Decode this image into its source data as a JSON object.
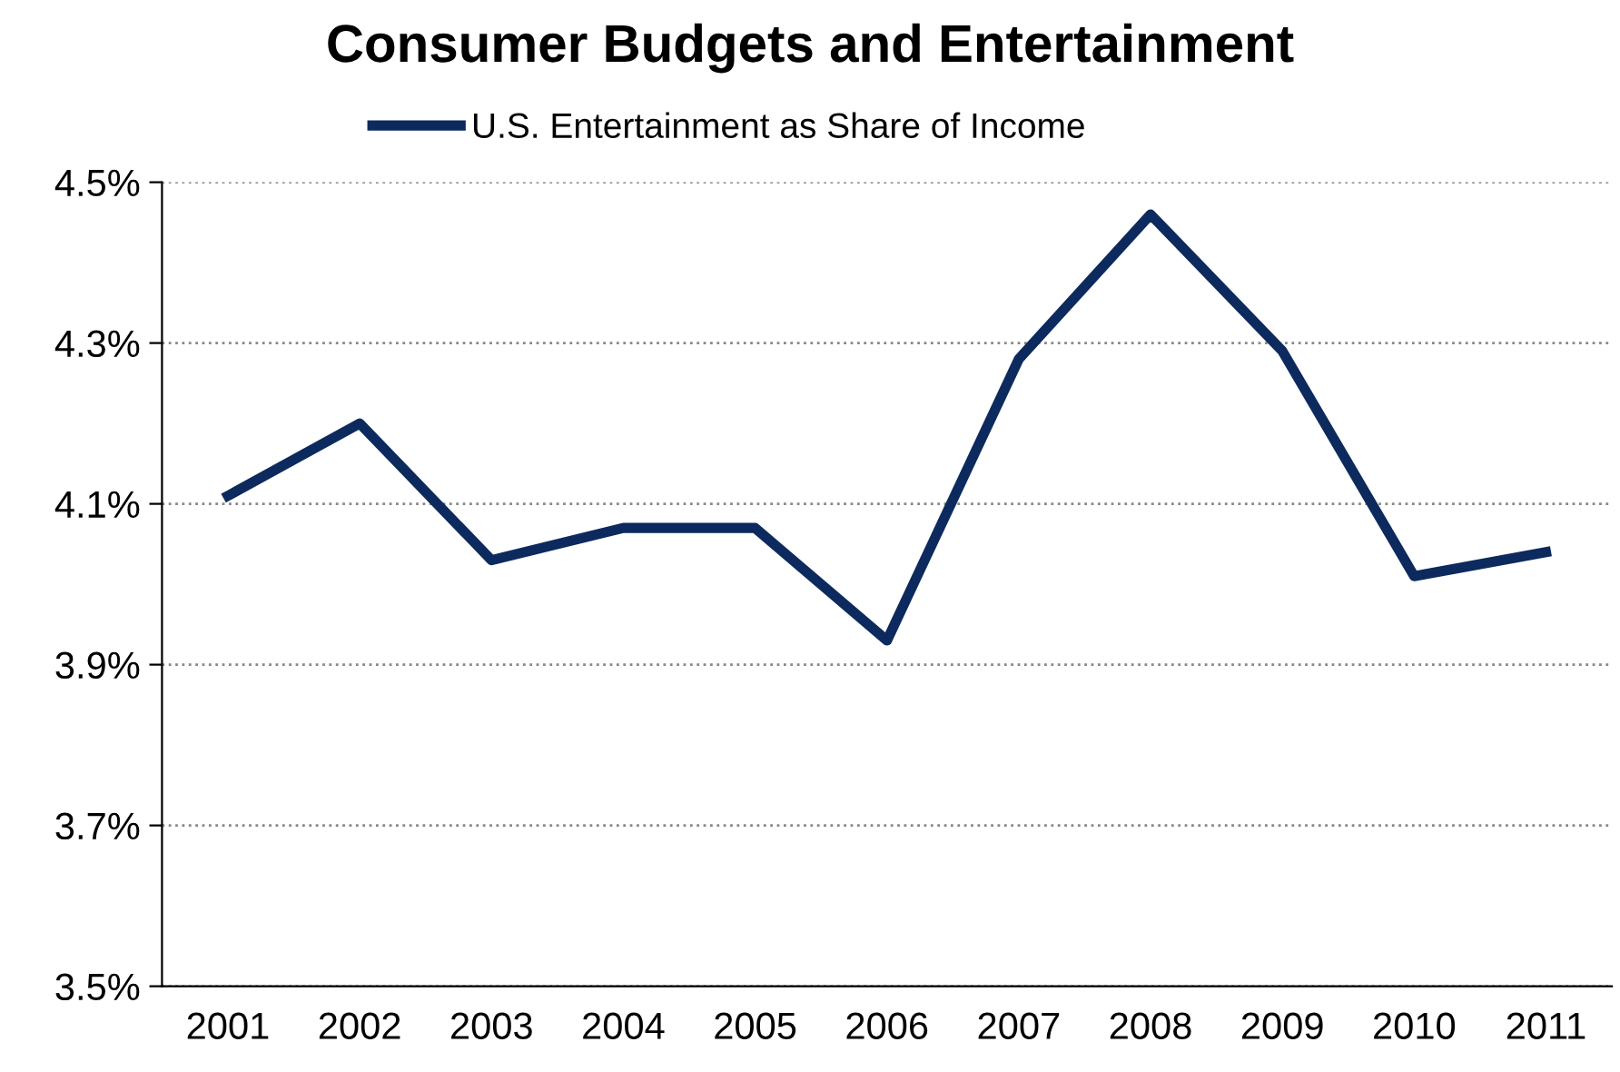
{
  "chart_data": {
    "type": "line",
    "title": "Consumer Budgets and Entertainment",
    "categories": [
      "2001",
      "2002",
      "2003",
      "2004",
      "2005",
      "2006",
      "2007",
      "2008",
      "2009",
      "2010",
      "2011"
    ],
    "series": [
      {
        "name": "U.S. Entertainment as Share of Income",
        "color": "#0d2a5e",
        "values": [
          4.11,
          4.2,
          4.03,
          4.07,
          4.07,
          3.93,
          4.28,
          4.46,
          4.29,
          4.01,
          4.04
        ]
      }
    ],
    "ylim": [
      3.5,
      4.5
    ],
    "yticks": [
      {
        "value": 3.5,
        "label": "3.5%"
      },
      {
        "value": 3.7,
        "label": "3.7%"
      },
      {
        "value": 3.9,
        "label": "3.9%"
      },
      {
        "value": 4.1,
        "label": "4.1%"
      },
      {
        "value": 4.3,
        "label": "4.3%"
      },
      {
        "value": 4.5,
        "label": "4.5%"
      }
    ],
    "grid": "y",
    "legend": "top",
    "marker": "none",
    "line_style": "solid"
  }
}
